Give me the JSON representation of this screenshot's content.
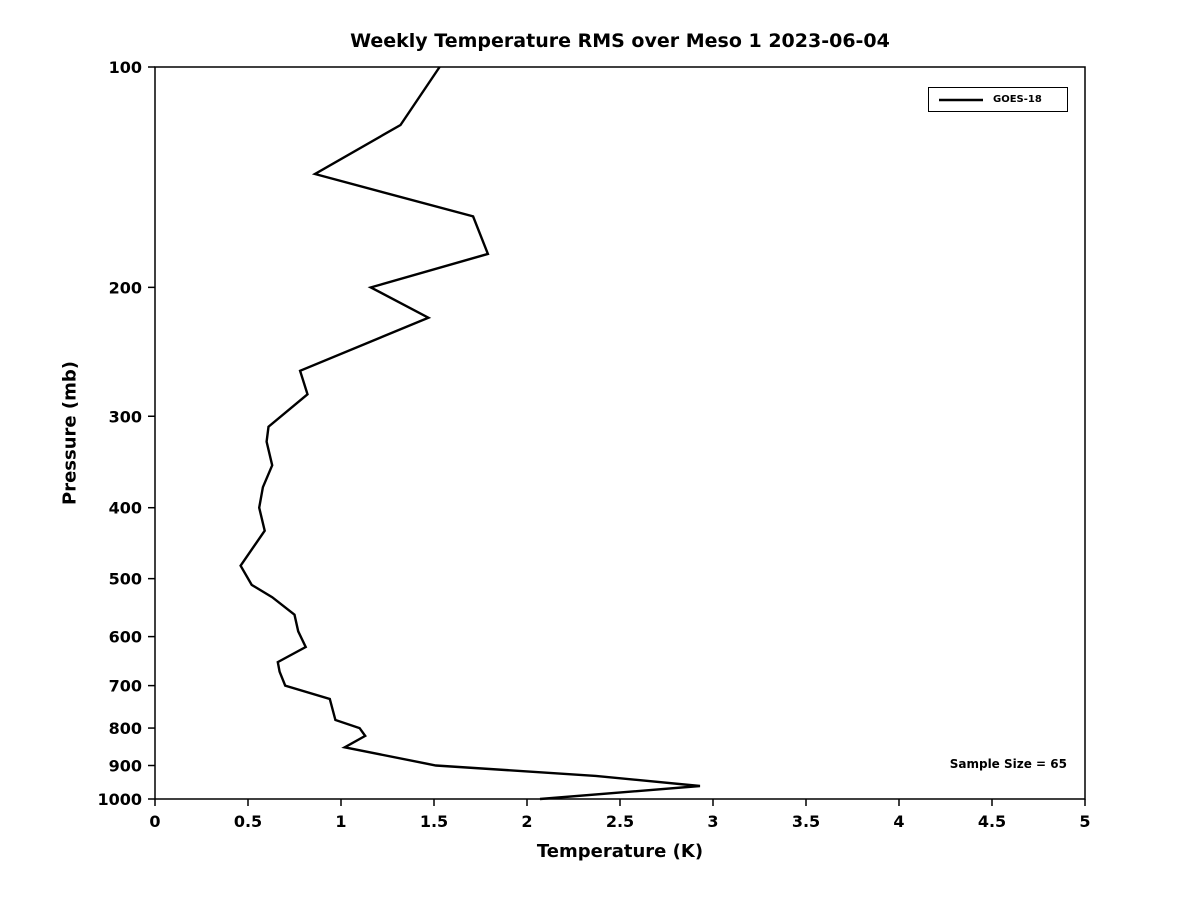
{
  "figure": {
    "background": "#ffffff",
    "axis_color": "#000000"
  },
  "chart_data": {
    "type": "line",
    "title": "Weekly Temperature RMS over Meso 1 2023-06-04",
    "xlabel": "Temperature (K)",
    "ylabel": "Pressure (mb)",
    "xlim": [
      0,
      5
    ],
    "ylim": [
      100,
      1000
    ],
    "yscale": "log",
    "y_axis_inverted": true,
    "grid": false,
    "xticks": [
      0,
      0.5,
      1,
      1.5,
      2,
      2.5,
      3,
      3.5,
      4,
      4.5,
      5
    ],
    "xtick_labels": [
      "0",
      "0.5",
      "1",
      "1.5",
      "2",
      "2.5",
      "3",
      "3.5",
      "4",
      "4.5",
      "5"
    ],
    "yticks": [
      100,
      200,
      300,
      400,
      500,
      600,
      700,
      800,
      900,
      1000
    ],
    "ytick_labels": [
      "100",
      "200",
      "300",
      "400",
      "500",
      "600",
      "700",
      "800",
      "900",
      "1000"
    ],
    "legend_position": "upper right",
    "annotation": "Sample Size = 65",
    "series": [
      {
        "name": "GOES-18",
        "color": "#000000",
        "line_width": 2.4,
        "y_pressure_mb": [
          100,
          120,
          140,
          160,
          180,
          200,
          220,
          260,
          280,
          310,
          325,
          350,
          375,
          400,
          430,
          480,
          510,
          530,
          560,
          590,
          620,
          650,
          670,
          700,
          730,
          780,
          800,
          820,
          850,
          900,
          930,
          960,
          1000
        ],
        "x_temperature_K": [
          1.53,
          1.32,
          0.86,
          1.71,
          1.79,
          1.16,
          1.47,
          0.78,
          0.82,
          0.61,
          0.6,
          0.63,
          0.58,
          0.56,
          0.59,
          0.46,
          0.52,
          0.63,
          0.75,
          0.77,
          0.81,
          0.66,
          0.67,
          0.7,
          0.94,
          0.97,
          1.1,
          1.13,
          1.02,
          1.51,
          2.37,
          2.93,
          2.07
        ]
      }
    ]
  }
}
